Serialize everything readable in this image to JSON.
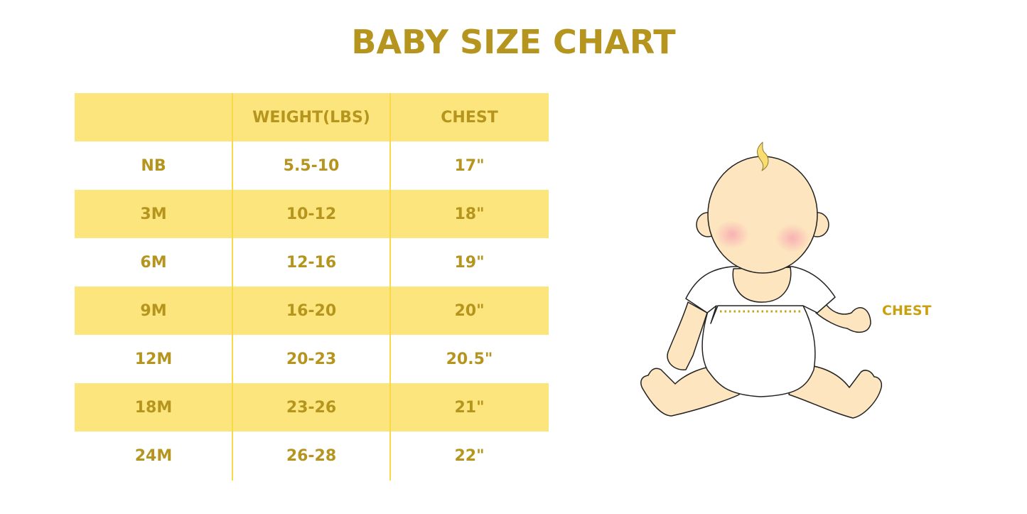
{
  "title": "BABY SIZE CHART",
  "table": {
    "headers": [
      "",
      "WEIGHT(LBS)",
      "CHEST"
    ],
    "rows": [
      [
        "NB",
        "5.5-10",
        "17\""
      ],
      [
        "3M",
        "10-12",
        "18\""
      ],
      [
        "6M",
        "12-16",
        "19\""
      ],
      [
        "9M",
        "16-20",
        "20\""
      ],
      [
        "12M",
        "20-23",
        "20.5\""
      ],
      [
        "18M",
        "23-26",
        "21\""
      ],
      [
        "24M",
        "26-28",
        "22\""
      ]
    ]
  },
  "illustration": {
    "chest_label": "CHEST"
  },
  "colors": {
    "text": "#b5951e",
    "band": "#fce57d",
    "skin": "#fde5bf"
  }
}
